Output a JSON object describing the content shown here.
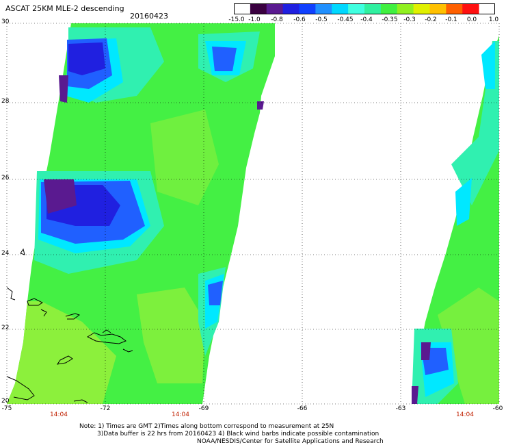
{
  "header": {
    "title": "ASCAT 25KM MLE-2 descending",
    "date": "20160423"
  },
  "colorbar": {
    "ticks": [
      "-15.0",
      "-1.0",
      "-0.8",
      "-0.6",
      "-0.5",
      "-0.45",
      "-0.4",
      "-0.35",
      "-0.3",
      "-0.2",
      "-0.1",
      "0.0",
      "1.0"
    ],
    "colors": [
      "#3a0040",
      "#5a1a90",
      "#2020e0",
      "#1040ff",
      "#2090ff",
      "#00d8ff",
      "#40ffe0",
      "#30f0a0",
      "#40f040",
      "#90f020",
      "#e0f000",
      "#ffc000",
      "#ff6000",
      "#ff1010"
    ]
  },
  "map": {
    "y_labels": [
      "30",
      "28",
      "26",
      "24",
      "22",
      "20"
    ],
    "x_labels": [
      "-75",
      "-72",
      "-69",
      "-66",
      "-63",
      "-60"
    ],
    "time_labels": [
      "14:04",
      "14:04",
      "14:04"
    ],
    "colors": {
      "green": "#44f044",
      "light_green": "#8cf03c",
      "cyan": "#30f0b0",
      "aqua": "#00e8ff",
      "blue": "#2060ff",
      "deep_blue": "#2020e0",
      "purple": "#5a1a90",
      "coast": "#000000",
      "grid": "#000000"
    }
  },
  "notes": {
    "line1": "Note: 1) Times are GMT 2)Times along bottom correspond to measurement at 25N",
    "line2": "3)Data buffer is 22 hrs from 20160423 4) Black wind barbs indicate possible contamination",
    "line3": "NOAA/NESDIS/Center for Satellite Applications and Research"
  }
}
